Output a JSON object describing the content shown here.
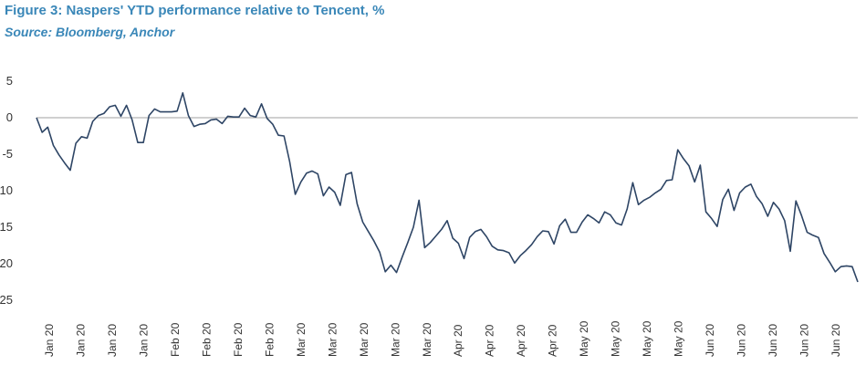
{
  "chart_data": {
    "type": "line",
    "title": "Figure 3: Naspers' YTD performance relative to Tencent, %",
    "subtitle": "Source: Bloomberg, Anchor",
    "xlabel": "",
    "ylabel": "",
    "ylim": [
      -25,
      5
    ],
    "yticks": [
      5,
      0,
      -5,
      -10,
      -15,
      -20,
      -25
    ],
    "grid": false,
    "legend": "none",
    "line_color": "#2e4565",
    "zero_line_color": "#a0a0a0",
    "xtick_labels": [
      "Jan 20",
      "Jan 20",
      "Jan 20",
      "Jan 20",
      "Feb 20",
      "Feb 20",
      "Feb 20",
      "Feb 20",
      "Mar 20",
      "Mar 20",
      "Mar 20",
      "Mar 20",
      "Mar 20",
      "Apr 20",
      "Apr 20",
      "Apr 20",
      "Apr 20",
      "May 20",
      "May 20",
      "May 20",
      "May 20",
      "Jun 20",
      "Jun 20",
      "Jun 20",
      "Jun 20",
      "Jun 20"
    ],
    "series": [
      {
        "values": [
          0,
          -2,
          -1.3,
          -3.8,
          -5.1,
          -6.2,
          -7.2,
          -3.5,
          -2.6,
          -2.8,
          -0.5,
          0.3,
          0.6,
          1.5,
          1.7,
          0.2,
          1.7,
          -0.3,
          -3.4,
          -3.4,
          0.3,
          1.2,
          0.8,
          0.8,
          0.8,
          0.9,
          3.4,
          0.3,
          -1.2,
          -0.9,
          -0.8,
          -0.3,
          -0.2,
          -0.8,
          0.2,
          0.1,
          0.1,
          1.3,
          0.3,
          0.1,
          1.9,
          -0.1,
          -0.9,
          -2.4,
          -2.5,
          -6,
          -10.5,
          -8.8,
          -7.6,
          -7.3,
          -7.7,
          -10.7,
          -9.5,
          -10.2,
          -12,
          -7.8,
          -7.5,
          -11.8,
          -14.3,
          -15.6,
          -16.9,
          -18.4,
          -21.1,
          -20.2,
          -21.2,
          -19.1,
          -17.1,
          -15,
          -11.3,
          -17.8,
          -17.1,
          -16.2,
          -15.3,
          -14.1,
          -16.5,
          -17.2,
          -19.3,
          -16.4,
          -15.6,
          -15.3,
          -16.3,
          -17.6,
          -18.1,
          -18.2,
          -18.5,
          -19.9,
          -18.9,
          -18.2,
          -17.4,
          -16.3,
          -15.5,
          -15.6,
          -17.3,
          -14.8,
          -13.9,
          -15.7,
          -15.7,
          -14.3,
          -13.3,
          -13.8,
          -14.4,
          -12.9,
          -13.3,
          -14.4,
          -14.7,
          -12.5,
          -8.9,
          -11.9,
          -11.3,
          -10.9,
          -10.3,
          -9.8,
          -8.6,
          -8.5,
          -4.4,
          -5.6,
          -6.6,
          -8.8,
          -6.5,
          -12.9,
          -13.8,
          -14.9,
          -11.2,
          -9.8,
          -12.7,
          -10.3,
          -9.5,
          -9.1,
          -10.8,
          -11.8,
          -13.5,
          -11.6,
          -12.5,
          -14.1,
          -18.3,
          -11.4,
          -13.4,
          -15.7,
          -16.1,
          -16.4,
          -18.6,
          -19.8,
          -21.1,
          -20.4,
          -20.3,
          -20.4,
          -22.5
        ]
      }
    ]
  }
}
